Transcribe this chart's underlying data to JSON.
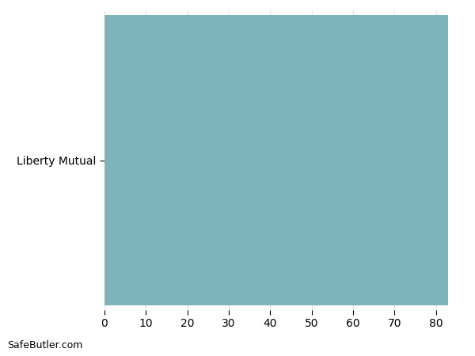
{
  "categories": [
    "Liberty Mutual"
  ],
  "values": [
    83
  ],
  "bar_color": "#7eb3bb",
  "xlim": [
    0,
    86
  ],
  "xticks": [
    0,
    10,
    20,
    30,
    40,
    50,
    60,
    70,
    80
  ],
  "background_color": "#ffffff",
  "watermark": "SafeButler.com",
  "bar_height": 0.97,
  "grid_color": "#d0e4e8",
  "tick_label_fontsize": 10,
  "ytick_fontsize": 10
}
